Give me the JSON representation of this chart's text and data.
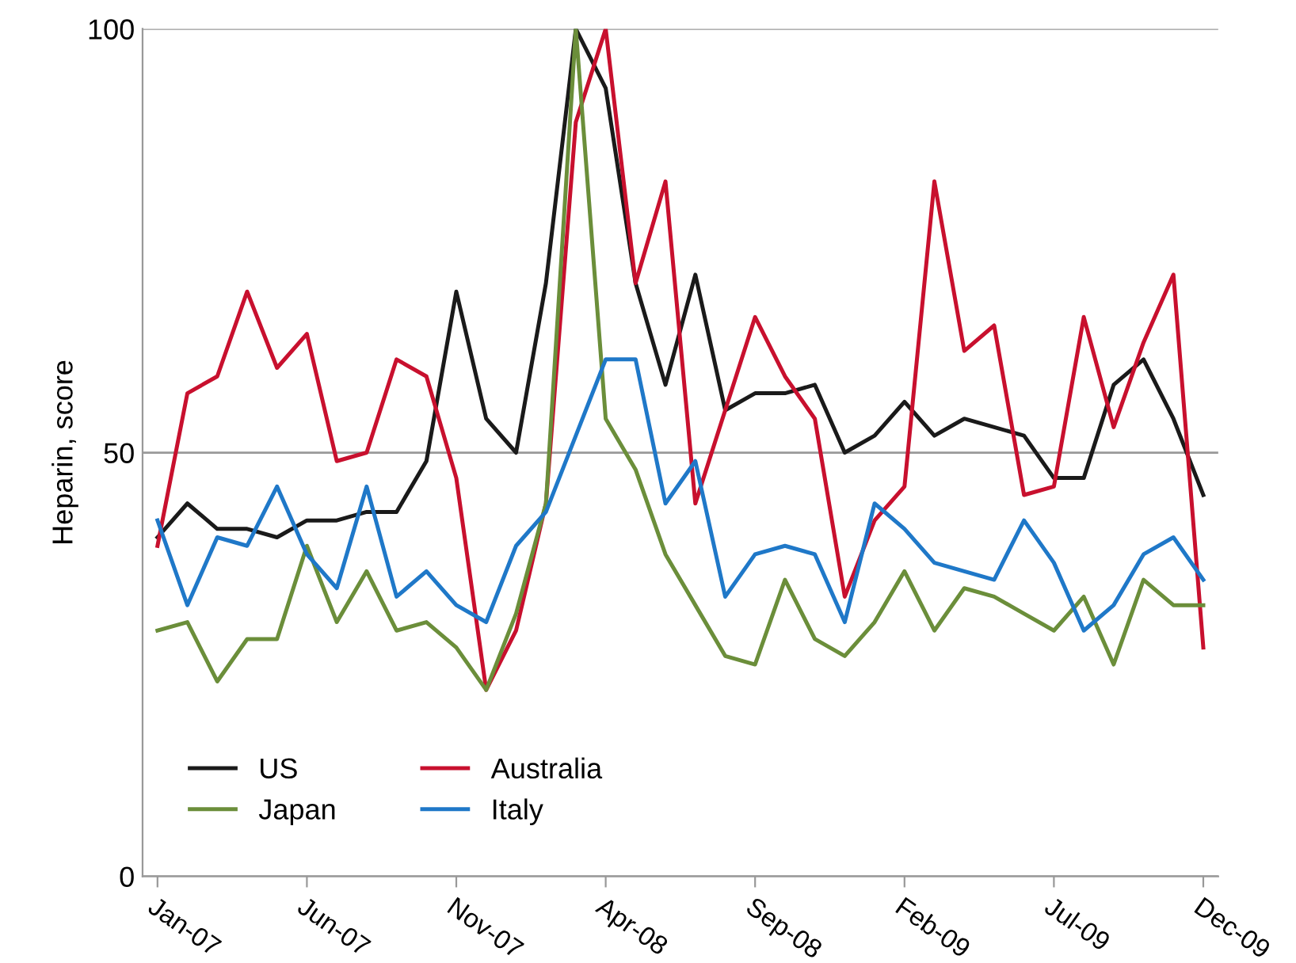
{
  "chart_data": {
    "type": "line",
    "ylabel": "Heparin, score",
    "categories": [
      "Jan-07",
      null,
      null,
      null,
      null,
      "Jun-07",
      null,
      null,
      null,
      null,
      "Nov-07",
      null,
      null,
      null,
      null,
      "Apr-08",
      null,
      null,
      null,
      null,
      "Sep-08",
      null,
      null,
      null,
      null,
      "Feb-09",
      null,
      null,
      null,
      null,
      "Jul-09",
      null,
      null,
      null,
      null,
      "Dec-09"
    ],
    "ylim": [
      0,
      100
    ],
    "yticks": [
      0,
      50,
      100
    ],
    "grid": "y",
    "legend": "bottom left",
    "marker": "none",
    "line_style": "solid",
    "series": [
      {
        "name": "US",
        "color": "#1a1a1a",
        "values": [
          40,
          44,
          41,
          41,
          40,
          42,
          42,
          43,
          43,
          49,
          69,
          54,
          50,
          70,
          100,
          93,
          70,
          58,
          71,
          55,
          57,
          57,
          58,
          50,
          52,
          56,
          52,
          54,
          53,
          52,
          47,
          47,
          58,
          61,
          54,
          45
        ]
      },
      {
        "name": "Australia",
        "color": "#c8102e",
        "values": [
          39,
          57,
          59,
          69,
          60,
          64,
          49,
          50,
          61,
          59,
          47,
          22,
          29,
          44,
          89,
          100,
          70,
          82,
          44,
          55,
          66,
          59,
          54,
          33,
          42,
          46,
          82,
          62,
          65,
          45,
          46,
          66,
          53,
          63,
          71,
          27
        ]
      },
      {
        "name": "Japan",
        "color": "#6b8e3a",
        "values": [
          29,
          30,
          23,
          28,
          28,
          39,
          30,
          36,
          29,
          30,
          27,
          22,
          31,
          44,
          100,
          54,
          48,
          38,
          32,
          26,
          25,
          35,
          28,
          26,
          30,
          36,
          29,
          34,
          33,
          31,
          29,
          33,
          25,
          35,
          32,
          32
        ]
      },
      {
        "name": "Italy",
        "color": "#1f78c8",
        "values": [
          42,
          32,
          40,
          39,
          46,
          38,
          34,
          46,
          33,
          36,
          32,
          30,
          39,
          43,
          52,
          61,
          61,
          44,
          49,
          33,
          38,
          39,
          38,
          30,
          44,
          41,
          37,
          36,
          35,
          42,
          37,
          29,
          32,
          38,
          40,
          35
        ]
      }
    ]
  }
}
